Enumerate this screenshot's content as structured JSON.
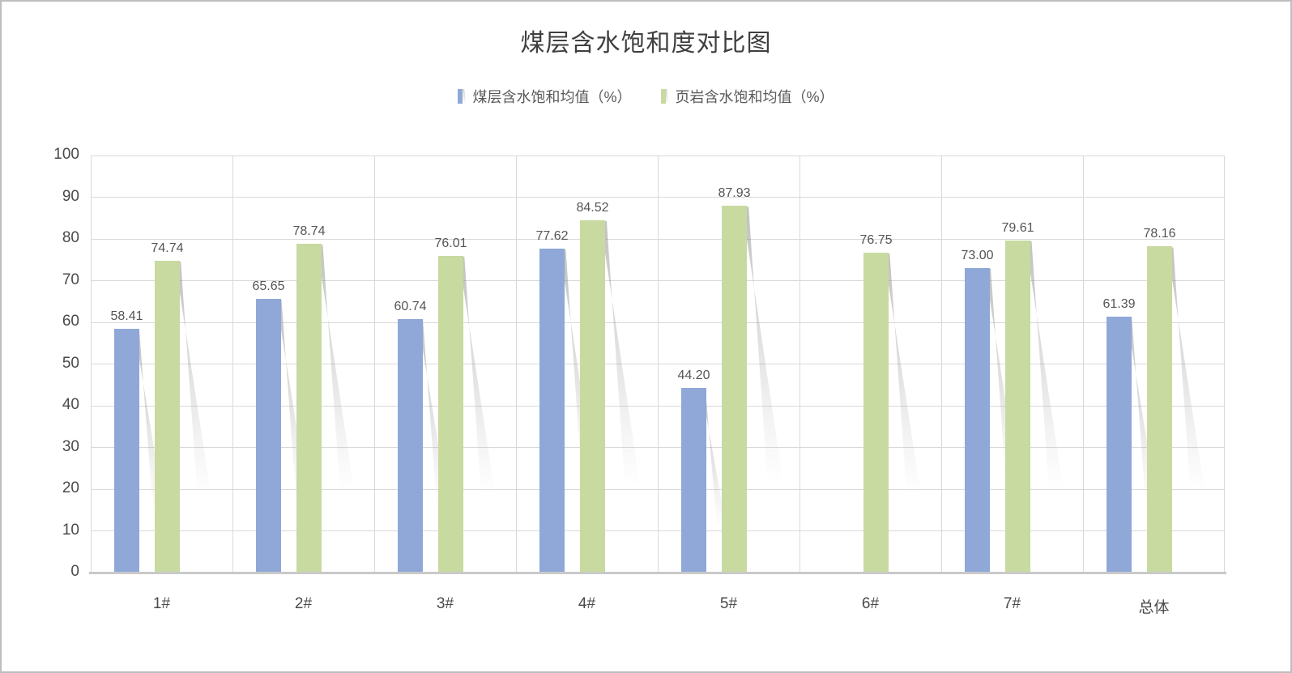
{
  "frame": {
    "border_color": "#BDBDBD",
    "background": "#FFFFFF"
  },
  "chart_data": {
    "type": "bar",
    "title": "煤层含水饱和度对比图",
    "categories": [
      "1#",
      "2#",
      "3#",
      "4#",
      "5#",
      "6#",
      "7#",
      "总体"
    ],
    "series": [
      {
        "key": "coal",
        "name": "煤层含水饱和均值（%）",
        "color": "#8FA8D8",
        "values": [
          58.41,
          65.65,
          60.74,
          77.62,
          44.2,
          null,
          73.0,
          61.39
        ]
      },
      {
        "key": "shale",
        "name": "页岩含水饱和均值（%）",
        "color": "#C8DAA0",
        "values": [
          74.74,
          78.74,
          76.01,
          84.52,
          87.93,
          76.75,
          79.61,
          78.16
        ]
      }
    ],
    "ylim": [
      0,
      100
    ],
    "y_ticks": [
      0,
      10,
      20,
      30,
      40,
      50,
      60,
      70,
      80,
      90,
      100
    ],
    "grid": true,
    "legend_position": "top",
    "value_label_decimals": 2,
    "bar_shadow": true
  },
  "axes": {
    "tick_color": "#4A4A4A",
    "gridline_color": "#D9D9D9",
    "axis_line_color": "#C9C9C9",
    "value_label_color": "#555555"
  }
}
